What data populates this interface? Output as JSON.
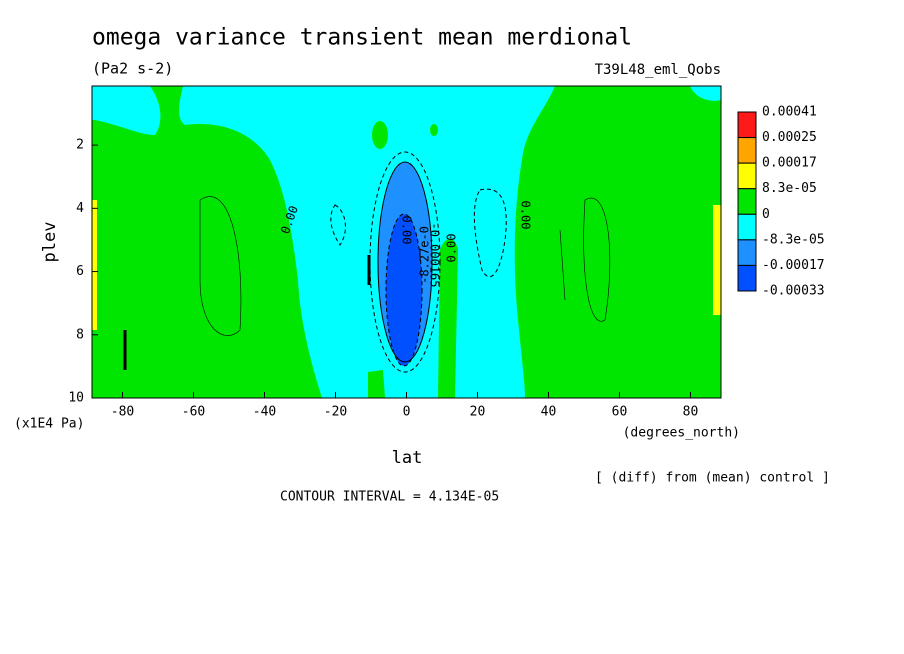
{
  "chart_data": {
    "type": "contour",
    "title": "omega variance transient mean merdional",
    "subtitle": "(Pa2 s-2)",
    "dataset": "T39L48_eml_Qobs",
    "x_label": "lat",
    "x_units": "(degrees_north)",
    "y_label": "plev",
    "y_units": "(x1E4 Pa)",
    "note": "[ (diff) from (mean) control ]",
    "contour_interval": "CONTOUR INTERVAL = 4.134E-05",
    "xlim": [
      -88.6,
      88.6
    ],
    "xticks": [
      -80,
      -60,
      -40,
      -20,
      0,
      20,
      40,
      60,
      80
    ],
    "ylim": [
      10,
      0.13
    ],
    "yticks": [
      2,
      4,
      6,
      8,
      10
    ],
    "colorbar": {
      "levels": [
        0.00041,
        0.00025,
        0.00017,
        {
          "value": 8.3e-05,
          "label": "8.3e-05"
        },
        0,
        {
          "value": -8.3e-05,
          "label": "-8.3e-05"
        },
        -0.00017,
        -0.00033
      ],
      "colors": [
        "#ff1a1a",
        "#ffa500",
        "#ffff00",
        "#00e600",
        "#00ffff",
        "#1e90ff",
        "#0050ff"
      ]
    },
    "contour_labels": [
      "0.00",
      "0.00",
      "0.00",
      "0.00",
      "-0.000165",
      "-8.27e-0"
    ]
  }
}
